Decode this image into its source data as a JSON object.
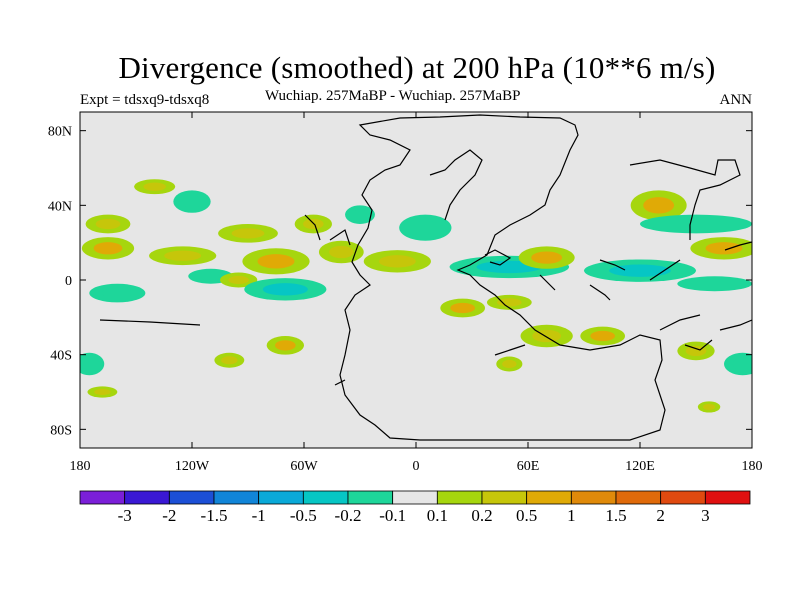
{
  "chart_data": {
    "type": "heatmap",
    "title": "Divergence (smoothed) at 200 hPa (10**6 m/s)",
    "left_label": "Expt = tdsxq9-tdsxq8",
    "center_label": "Wuchiap. 257MaBP - Wuchiap. 257MaBP",
    "right_label": "ANN",
    "x_ticks": [
      "180",
      "120W",
      "60W",
      "0",
      "60E",
      "120E",
      "180"
    ],
    "y_ticks": [
      "80N",
      "40N",
      "0",
      "40S",
      "80S"
    ],
    "xlim": [
      -180,
      180
    ],
    "ylim": [
      -90,
      90
    ],
    "colorbar": {
      "levels": [
        "-3",
        "-2",
        "-1.5",
        "-1",
        "-0.5",
        "-0.2",
        "-0.1",
        "0.1",
        "0.2",
        "0.5",
        "1",
        "1.5",
        "2",
        "3"
      ],
      "colors": [
        "#7b1fd8",
        "#3a18d4",
        "#1c4fd6",
        "#1185d8",
        "#0aa9d8",
        "#06c6c4",
        "#1ed69a",
        "#e6e6e6",
        "#a6d60e",
        "#c6c60a",
        "#e0aa06",
        "#e08a0a",
        "#e06a0a",
        "#e04a10",
        "#e01010"
      ]
    },
    "features": [
      {
        "lon": -165,
        "lat": 30,
        "rlon": 12,
        "rlat": 5,
        "value": 0.2
      },
      {
        "lon": -165,
        "lat": 17,
        "rlon": 14,
        "rlat": 6,
        "value": 0.5
      },
      {
        "lon": -160,
        "lat": -7,
        "rlon": 15,
        "rlat": 5,
        "value": -0.2
      },
      {
        "lon": -140,
        "lat": 50,
        "rlon": 11,
        "rlat": 4,
        "value": 0.2
      },
      {
        "lon": -120,
        "lat": 42,
        "rlon": 10,
        "rlat": 6,
        "value": -0.2
      },
      {
        "lon": -125,
        "lat": 13,
        "rlon": 18,
        "rlat": 5,
        "value": 0.2
      },
      {
        "lon": -110,
        "lat": 2,
        "rlon": 12,
        "rlat": 4,
        "value": -0.2
      },
      {
        "lon": -95,
        "lat": 0,
        "rlon": 10,
        "rlat": 4,
        "value": 0.2
      },
      {
        "lon": -90,
        "lat": 25,
        "rlon": 16,
        "rlat": 5,
        "value": 0.2
      },
      {
        "lon": -75,
        "lat": 10,
        "rlon": 18,
        "rlat": 7,
        "value": 0.5
      },
      {
        "lon": -70,
        "lat": -5,
        "rlon": 22,
        "rlat": 6,
        "value": -0.5
      },
      {
        "lon": -55,
        "lat": 30,
        "rlon": 10,
        "rlat": 5,
        "value": 0.2
      },
      {
        "lon": -70,
        "lat": -35,
        "rlon": 10,
        "rlat": 5,
        "value": 0.5
      },
      {
        "lon": -40,
        "lat": 15,
        "rlon": 12,
        "rlat": 6,
        "value": 0.2
      },
      {
        "lon": -30,
        "lat": 35,
        "rlon": 8,
        "rlat": 5,
        "value": -0.2
      },
      {
        "lon": -10,
        "lat": 10,
        "rlon": 18,
        "rlat": 6,
        "value": 0.2
      },
      {
        "lon": 5,
        "lat": 28,
        "rlon": 14,
        "rlat": 7,
        "value": -0.2
      },
      {
        "lon": 25,
        "lat": -15,
        "rlon": 12,
        "rlat": 5,
        "value": 0.5
      },
      {
        "lon": 50,
        "lat": -12,
        "rlon": 12,
        "rlat": 4,
        "value": 0.2
      },
      {
        "lon": 50,
        "lat": 7,
        "rlon": 32,
        "rlat": 6,
        "value": -0.5
      },
      {
        "lon": 70,
        "lat": 12,
        "rlon": 15,
        "rlat": 6,
        "value": 0.5
      },
      {
        "lon": 120,
        "lat": 5,
        "rlon": 30,
        "rlat": 6,
        "value": -0.5
      },
      {
        "lon": 130,
        "lat": 40,
        "rlon": 15,
        "rlat": 8,
        "value": 0.5
      },
      {
        "lon": 150,
        "lat": 30,
        "rlon": 30,
        "rlat": 5,
        "value": -0.2
      },
      {
        "lon": 165,
        "lat": 17,
        "rlon": 18,
        "rlat": 6,
        "value": 0.5
      },
      {
        "lon": 160,
        "lat": -2,
        "rlon": 20,
        "rlat": 4,
        "value": -0.2
      },
      {
        "lon": 70,
        "lat": -30,
        "rlon": 14,
        "rlat": 6,
        "value": 0.2
      },
      {
        "lon": 100,
        "lat": -30,
        "rlon": 12,
        "rlat": 5,
        "value": 0.5
      },
      {
        "lon": 150,
        "lat": -38,
        "rlon": 10,
        "rlat": 5,
        "value": 0.2
      },
      {
        "lon": 175,
        "lat": -45,
        "rlon": 10,
        "rlat": 6,
        "value": -0.2
      },
      {
        "lon": -175,
        "lat": -45,
        "rlon": 8,
        "rlat": 6,
        "value": -0.2
      },
      {
        "lon": -168,
        "lat": -60,
        "rlon": 8,
        "rlat": 3,
        "value": 0.2
      },
      {
        "lon": 50,
        "lat": -45,
        "rlon": 7,
        "rlat": 4,
        "value": 0.2
      },
      {
        "lon": 157,
        "lat": -68,
        "rlon": 6,
        "rlat": 3,
        "value": 0.2
      },
      {
        "lon": -100,
        "lat": -43,
        "rlon": 8,
        "rlat": 4,
        "value": 0.2
      }
    ]
  }
}
